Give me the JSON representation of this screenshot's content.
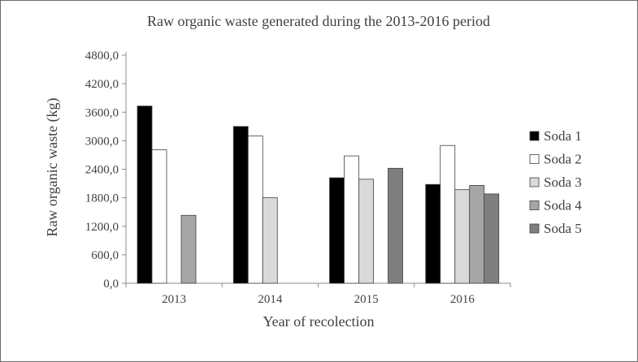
{
  "chart_data": {
    "type": "bar",
    "title": "Raw organic waste generated during the 2013-2016 period",
    "xlabel": "Year of recolection",
    "ylabel": "Raw organic waste (kg)",
    "categories": [
      "2013",
      "2014",
      "2015",
      "2016"
    ],
    "ylim": [
      0,
      4800
    ],
    "yticks": [
      0,
      600,
      1200,
      1800,
      2400,
      3000,
      3600,
      4200,
      4800
    ],
    "ytick_labels": [
      "0,0",
      "600,0",
      "1200,0",
      "1800,0",
      "2400,0",
      "3000,0",
      "3600,0",
      "4200,0",
      "4800,0"
    ],
    "grid": false,
    "legend_position": "right",
    "series": [
      {
        "name": "Soda 1",
        "color": "#000000",
        "values": [
          3730,
          3300,
          2220,
          2080
        ]
      },
      {
        "name": "Soda 2",
        "color": "#ffffff",
        "values": [
          2810,
          3100,
          2680,
          2900
        ]
      },
      {
        "name": "Soda 3",
        "color": "#d9d9d9",
        "values": [
          null,
          1800,
          2190,
          1970
        ]
      },
      {
        "name": "Soda 4",
        "color": "#a6a6a6",
        "values": [
          1430,
          null,
          null,
          2060
        ]
      },
      {
        "name": "Soda 5",
        "color": "#7f7f7f",
        "values": [
          null,
          null,
          2420,
          1880
        ]
      }
    ]
  }
}
